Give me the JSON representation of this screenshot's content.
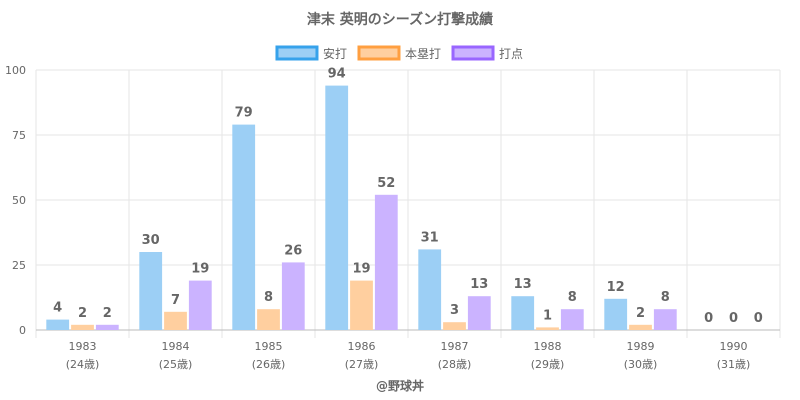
{
  "chart_data": {
    "type": "bar",
    "title": "津末 英明のシーズン打撃成績",
    "categories": [
      "1983",
      "1984",
      "1985",
      "1986",
      "1987",
      "1988",
      "1989",
      "1990"
    ],
    "category_sublabels": [
      "(24歳)",
      "(25歳)",
      "(26歳)",
      "(27歳)",
      "(28歳)",
      "(29歳)",
      "(30歳)",
      "(31歳)"
    ],
    "series": [
      {
        "name": "安打",
        "values": [
          4,
          30,
          79,
          94,
          31,
          13,
          12,
          0
        ],
        "color": "#9ccff5",
        "border": "#36a2eb"
      },
      {
        "name": "本塁打",
        "values": [
          2,
          7,
          8,
          19,
          3,
          1,
          2,
          0
        ],
        "color": "#ffcf9f",
        "border": "#ff9f40"
      },
      {
        "name": "打点",
        "values": [
          2,
          19,
          26,
          52,
          13,
          8,
          8,
          0
        ],
        "color": "#cbb3ff",
        "border": "#9966ff"
      }
    ],
    "yticks": [
      "0",
      "25",
      "50",
      "75",
      "100"
    ],
    "ylim": [
      0,
      100
    ],
    "grid": true,
    "legend": "top-center",
    "footer": "@野球丼"
  }
}
